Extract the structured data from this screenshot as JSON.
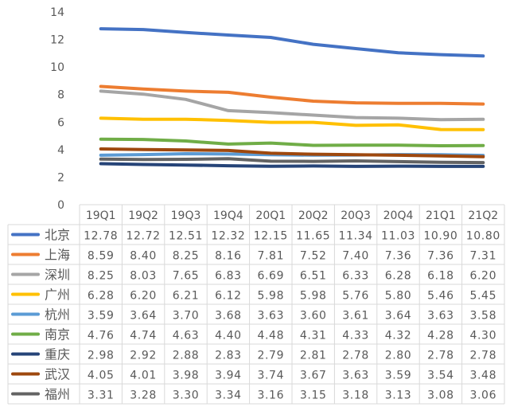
{
  "chart_data": {
    "type": "line",
    "title": "",
    "xlabel": "",
    "ylabel": "",
    "ylim": [
      0,
      14
    ],
    "yticks": [
      0,
      2,
      4,
      6,
      8,
      10,
      12,
      14
    ],
    "grid": false,
    "legend": "data-table",
    "categories": [
      "19Q1",
      "19Q2",
      "19Q3",
      "19Q4",
      "20Q1",
      "20Q2",
      "20Q3",
      "20Q4",
      "21Q1",
      "21Q2"
    ],
    "series": [
      {
        "name": "北京",
        "color": "#4472C4",
        "values": [
          12.78,
          12.72,
          12.51,
          12.32,
          12.15,
          11.65,
          11.34,
          11.03,
          10.9,
          10.8
        ]
      },
      {
        "name": "上海",
        "color": "#ED7D31",
        "values": [
          8.59,
          8.4,
          8.25,
          8.16,
          7.81,
          7.52,
          7.4,
          7.36,
          7.36,
          7.31
        ]
      },
      {
        "name": "深圳",
        "color": "#A5A5A5",
        "values": [
          8.25,
          8.03,
          7.65,
          6.83,
          6.69,
          6.51,
          6.33,
          6.28,
          6.18,
          6.2
        ]
      },
      {
        "name": "广州",
        "color": "#FFC000",
        "values": [
          6.28,
          6.2,
          6.21,
          6.12,
          5.98,
          5.98,
          5.76,
          5.8,
          5.46,
          5.45
        ]
      },
      {
        "name": "杭州",
        "color": "#5B9BD5",
        "values": [
          3.59,
          3.64,
          3.7,
          3.68,
          3.63,
          3.6,
          3.61,
          3.64,
          3.63,
          3.58
        ]
      },
      {
        "name": "南京",
        "color": "#70AD47",
        "values": [
          4.76,
          4.74,
          4.63,
          4.4,
          4.48,
          4.31,
          4.33,
          4.32,
          4.28,
          4.3
        ]
      },
      {
        "name": "重庆",
        "color": "#264478",
        "values": [
          2.98,
          2.92,
          2.88,
          2.83,
          2.79,
          2.81,
          2.78,
          2.8,
          2.78,
          2.78
        ]
      },
      {
        "name": "武汉",
        "color": "#9E480E",
        "values": [
          4.05,
          4.01,
          3.98,
          3.94,
          3.74,
          3.67,
          3.63,
          3.59,
          3.54,
          3.48
        ]
      },
      {
        "name": "福州",
        "color": "#636363",
        "values": [
          3.31,
          3.28,
          3.3,
          3.34,
          3.16,
          3.15,
          3.18,
          3.13,
          3.08,
          3.06
        ]
      }
    ]
  }
}
